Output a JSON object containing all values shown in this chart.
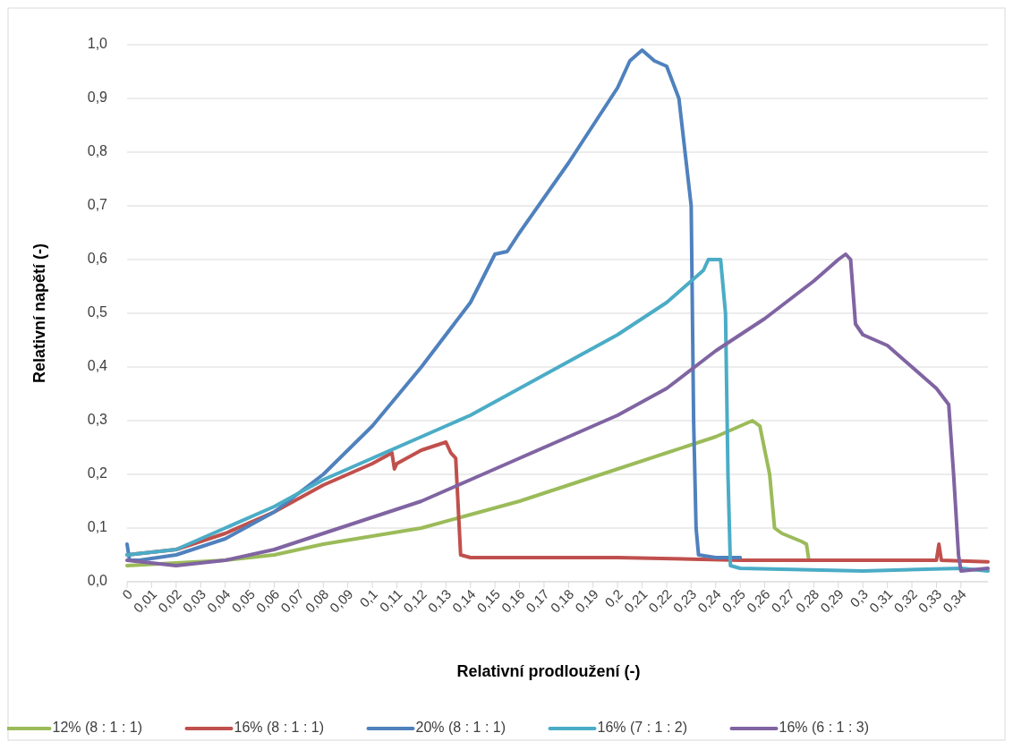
{
  "chart_data": {
    "type": "line",
    "xlabel": "Relativní prodloužení (-)",
    "ylabel": "Relativní napětí (-)",
    "xlim": [
      0,
      0.351
    ],
    "ylim": [
      0,
      1
    ],
    "xticks": [
      {
        "value": 0,
        "label": "0"
      },
      {
        "value": 0.01,
        "label": "0,01"
      },
      {
        "value": 0.02,
        "label": "0,02"
      },
      {
        "value": 0.03,
        "label": "0,03"
      },
      {
        "value": 0.04,
        "label": "0,04"
      },
      {
        "value": 0.05,
        "label": "0,05"
      },
      {
        "value": 0.06,
        "label": "0,06"
      },
      {
        "value": 0.07,
        "label": "0,07"
      },
      {
        "value": 0.08,
        "label": "0,08"
      },
      {
        "value": 0.09,
        "label": "0,09"
      },
      {
        "value": 0.1,
        "label": "0,1"
      },
      {
        "value": 0.11,
        "label": "0,11"
      },
      {
        "value": 0.12,
        "label": "0,12"
      },
      {
        "value": 0.13,
        "label": "0,13"
      },
      {
        "value": 0.14,
        "label": "0,14"
      },
      {
        "value": 0.15,
        "label": "0,15"
      },
      {
        "value": 0.16,
        "label": "0,16"
      },
      {
        "value": 0.17,
        "label": "0,17"
      },
      {
        "value": 0.18,
        "label": "0,18"
      },
      {
        "value": 0.19,
        "label": "0,19"
      },
      {
        "value": 0.2,
        "label": "0,2"
      },
      {
        "value": 0.21,
        "label": "0,21"
      },
      {
        "value": 0.22,
        "label": "0,22"
      },
      {
        "value": 0.23,
        "label": "0,23"
      },
      {
        "value": 0.24,
        "label": "0,24"
      },
      {
        "value": 0.25,
        "label": "0,25"
      },
      {
        "value": 0.26,
        "label": "0,26"
      },
      {
        "value": 0.27,
        "label": "0,27"
      },
      {
        "value": 0.28,
        "label": "0,28"
      },
      {
        "value": 0.29,
        "label": "0,29"
      },
      {
        "value": 0.3,
        "label": "0,3"
      },
      {
        "value": 0.31,
        "label": "0,31"
      },
      {
        "value": 0.32,
        "label": "0,32"
      },
      {
        "value": 0.33,
        "label": "0,33"
      },
      {
        "value": 0.34,
        "label": "0,34"
      }
    ],
    "yticks": [
      {
        "value": 0,
        "label": "0,0"
      },
      {
        "value": 0.1,
        "label": "0,1"
      },
      {
        "value": 0.2,
        "label": "0,2"
      },
      {
        "value": 0.3,
        "label": "0,3"
      },
      {
        "value": 0.4,
        "label": "0,4"
      },
      {
        "value": 0.5,
        "label": "0,5"
      },
      {
        "value": 0.6,
        "label": "0,6"
      },
      {
        "value": 0.7,
        "label": "0,7"
      },
      {
        "value": 0.8,
        "label": "0,8"
      },
      {
        "value": 0.9,
        "label": "0,9"
      },
      {
        "value": 1,
        "label": "1,0"
      }
    ],
    "grid": "y",
    "legend": "bottom",
    "marker": "none",
    "line_style": "solid",
    "series": [
      {
        "name": "12% (8 : 1 : 1)",
        "color": "#9bbb59",
        "x": [
          0,
          0.02,
          0.04,
          0.06,
          0.08,
          0.1,
          0.12,
          0.14,
          0.16,
          0.18,
          0.2,
          0.22,
          0.24,
          0.255,
          0.258,
          0.262,
          0.264,
          0.267,
          0.275,
          0.277,
          0.278
        ],
        "values": [
          0.03,
          0.035,
          0.04,
          0.05,
          0.07,
          0.085,
          0.1,
          0.125,
          0.15,
          0.18,
          0.21,
          0.24,
          0.27,
          0.3,
          0.29,
          0.2,
          0.1,
          0.09,
          0.075,
          0.07,
          0.04
        ]
      },
      {
        "name": "16% (8 : 1 : 1)",
        "color": "#c0504d",
        "x": [
          0,
          0.02,
          0.04,
          0.06,
          0.08,
          0.1,
          0.108,
          0.109,
          0.11,
          0.12,
          0.13,
          0.132,
          0.134,
          0.136,
          0.14,
          0.2,
          0.25,
          0.3,
          0.33,
          0.331,
          0.332,
          0.351
        ],
        "values": [
          0.05,
          0.06,
          0.09,
          0.13,
          0.18,
          0.22,
          0.24,
          0.21,
          0.22,
          0.245,
          0.26,
          0.24,
          0.23,
          0.05,
          0.045,
          0.045,
          0.04,
          0.04,
          0.04,
          0.07,
          0.04,
          0.037
        ]
      },
      {
        "name": "20% (8 : 1 : 1)",
        "color": "#4f81bd",
        "x": [
          0,
          0.001,
          0.005,
          0.02,
          0.04,
          0.06,
          0.08,
          0.1,
          0.12,
          0.14,
          0.15,
          0.155,
          0.16,
          0.18,
          0.2,
          0.205,
          0.21,
          0.215,
          0.22,
          0.225,
          0.23,
          0.231,
          0.232,
          0.233,
          0.24,
          0.25
        ],
        "values": [
          0.07,
          0.04,
          0.04,
          0.05,
          0.08,
          0.13,
          0.2,
          0.29,
          0.4,
          0.52,
          0.61,
          0.615,
          0.65,
          0.78,
          0.92,
          0.97,
          0.99,
          0.97,
          0.96,
          0.9,
          0.7,
          0.3,
          0.1,
          0.05,
          0.045,
          0.045
        ]
      },
      {
        "name": "16% (7 : 1 : 2)",
        "color": "#4bacc6",
        "x": [
          0,
          0.02,
          0.04,
          0.06,
          0.08,
          0.1,
          0.12,
          0.14,
          0.16,
          0.18,
          0.2,
          0.22,
          0.235,
          0.237,
          0.242,
          0.244,
          0.245,
          0.246,
          0.25,
          0.3,
          0.34,
          0.351
        ],
        "values": [
          0.05,
          0.06,
          0.1,
          0.14,
          0.19,
          0.23,
          0.27,
          0.31,
          0.36,
          0.41,
          0.46,
          0.52,
          0.58,
          0.6,
          0.6,
          0.5,
          0.2,
          0.03,
          0.025,
          0.02,
          0.025,
          0.02
        ]
      },
      {
        "name": "16% (6 : 1 : 3)",
        "color": "#8064a2",
        "x": [
          0,
          0.02,
          0.04,
          0.06,
          0.08,
          0.1,
          0.12,
          0.14,
          0.16,
          0.18,
          0.2,
          0.22,
          0.24,
          0.26,
          0.28,
          0.29,
          0.293,
          0.295,
          0.297,
          0.3,
          0.31,
          0.32,
          0.325,
          0.33,
          0.335,
          0.337,
          0.339,
          0.34,
          0.351
        ],
        "values": [
          0.04,
          0.03,
          0.04,
          0.06,
          0.09,
          0.12,
          0.15,
          0.19,
          0.23,
          0.27,
          0.31,
          0.36,
          0.43,
          0.49,
          0.56,
          0.6,
          0.61,
          0.6,
          0.48,
          0.46,
          0.44,
          0.4,
          0.38,
          0.36,
          0.33,
          0.2,
          0.05,
          0.02,
          0.025
        ]
      }
    ]
  }
}
